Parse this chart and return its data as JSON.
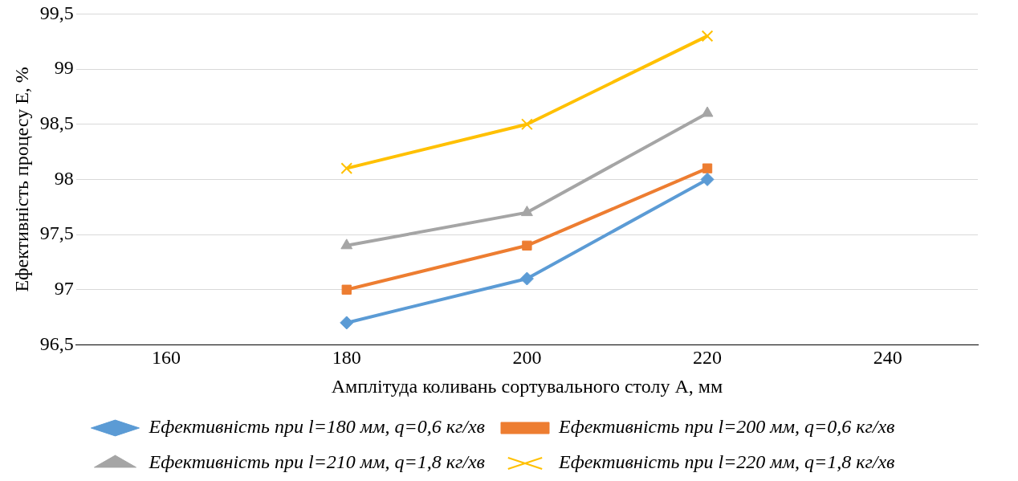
{
  "chart_data": {
    "type": "line",
    "xlabel": "Амплітуда коливань сортувального столу A, мм",
    "ylabel": "Ефективність процесу E, %",
    "x": [
      180,
      200,
      220
    ],
    "series": [
      {
        "name": "Ефективність при l=180 мм, q=0,6 кг/хв",
        "color": "#5b9bd5",
        "marker": "diamond",
        "values": [
          96.7,
          97.1,
          98.0
        ]
      },
      {
        "name": "Ефективність при l=200 мм, q=0,6 кг/хв",
        "color": "#ed7d31",
        "marker": "square",
        "values": [
          97.0,
          97.4,
          98.1
        ]
      },
      {
        "name": "Ефективність при l=210 мм, q=1,8 кг/хв",
        "color": "#a5a5a5",
        "marker": "triangle",
        "values": [
          97.4,
          97.7,
          98.6
        ]
      },
      {
        "name": "Ефективність при l=220 мм, q=1,8 кг/хв",
        "color": "#ffc000",
        "marker": "cross",
        "values": [
          98.1,
          98.5,
          99.3
        ]
      }
    ],
    "xlim": [
      150,
      250
    ],
    "xticks": [
      160,
      180,
      200,
      220,
      240
    ],
    "ylim": [
      96.5,
      99.5
    ],
    "yticks": [
      {
        "value": 96.5,
        "label": "96,5"
      },
      {
        "value": 97,
        "label": "97"
      },
      {
        "value": 97.5,
        "label": "97,5"
      },
      {
        "value": 98,
        "label": "98"
      },
      {
        "value": 98.5,
        "label": "98,5"
      },
      {
        "value": 99,
        "label": "99"
      },
      {
        "value": 99.5,
        "label": "99,5"
      }
    ],
    "grid": "y",
    "legend": "bottom",
    "line_style": "solid"
  }
}
